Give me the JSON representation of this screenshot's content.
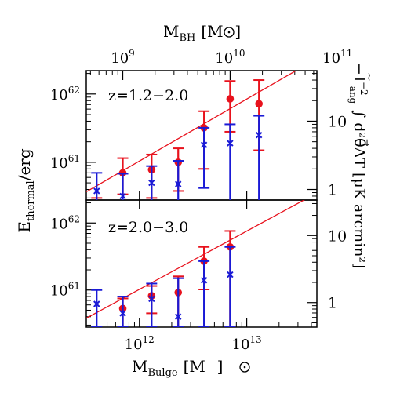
{
  "chart_data": {
    "type": "scatter",
    "x_scale": "log",
    "y_scale": "log",
    "shared_x_axis": {
      "bottom_label_main": "M",
      "bottom_label_sub": "Bulge",
      "bottom_label_unit": "[M",
      "bottom_label_unit_close": "]",
      "bottom_ticks": [
        {
          "value": 1000000000000.0,
          "base": "10",
          "exp": "12"
        },
        {
          "value": 10000000000000.0,
          "base": "10",
          "exp": "13"
        }
      ],
      "xlim": [
        320000000000.0,
        45000000000000.0
      ],
      "top_label_main": "M",
      "top_label_sub": "BH",
      "top_label_unit": "[M",
      "top_label_unit_close": "]",
      "top_ticks": [
        {
          "value_bulge": 700000000000.0,
          "base": "10",
          "exp": "9"
        },
        {
          "value_bulge": 7000000000000.0,
          "base": "10",
          "exp": "10"
        },
        {
          "value_bulge": 70000000000000.0,
          "base": "10",
          "exp": "11"
        }
      ]
    },
    "left_axis": {
      "label_main": "E",
      "label_sub": "thermal",
      "label_rest": "/erg"
    },
    "right_axis": {
      "label_prefix": "−",
      "label_tilde_l": "l",
      "label_exp": "−2",
      "label_sub": "ang",
      "label_integral": "∫ d²θ⃗ΔT [μK arcmin²]"
    },
    "panels": [
      {
        "name": "upper",
        "annotation": "z=1.2−2.0",
        "ylim": [
          2.8e+60,
          2.2e+62
        ],
        "left_ticks": [
          {
            "value": 1e+61,
            "base": "10",
            "exp": "61"
          },
          {
            "value": 1e+62,
            "base": "10",
            "exp": "62"
          }
        ],
        "right_ticks": [
          {
            "value": 4e+60,
            "label": "1"
          },
          {
            "value": 4e+61,
            "label": "10"
          }
        ],
        "model_line": [
          [
            320000000000.0,
            3.7e+60
          ],
          [
            45000000000000.0,
            3.3e+62
          ]
        ],
        "series": [
          {
            "marker": "circle",
            "color": "#e8121d",
            "points": [
              {
                "x": 400000000000.0,
                "y": 2e+60,
                "lo": 1e+60,
                "hi": 3e+60
              },
              {
                "x": 700000000000.0,
                "y": 7e+60,
                "lo": 3.4e+60,
                "hi": 1.15e+61
              },
              {
                "x": 1300000000000.0,
                "y": 7.8e+60,
                "lo": 3e+60,
                "hi": 1.3e+61
              },
              {
                "x": 2300000000000.0,
                "y": 1e+61,
                "lo": 3.8e+60,
                "hi": 1.6e+61
              },
              {
                "x": 4000000000000.0,
                "y": 3.2e+61,
                "lo": 8e+60,
                "hi": 5.6e+61
              },
              {
                "x": 7000000000000.0,
                "y": 8.5e+61,
                "lo": 2.8e+61,
                "hi": 1.55e+62
              },
              {
                "x": 13000000000000.0,
                "y": 7.2e+61,
                "lo": 1.5e+61,
                "hi": 1.6e+62
              }
            ]
          },
          {
            "marker": "cross",
            "color": "#1a1ad6",
            "points": [
              {
                "x": 400000000000.0,
                "y": 3.8e+60,
                "lo": 1.5e+60,
                "hi": 7e+60
              },
              {
                "x": 700000000000.0,
                "y": 3.2e+60,
                "lo": 1.5e+60,
                "hi": 6.8e+60
              },
              {
                "x": 1300000000000.0,
                "y": 5e+60,
                "lo": 1.5e+60,
                "hi": 8.8e+60
              },
              {
                "x": 2300000000000.0,
                "y": 4.8e+60,
                "lo": 1.5e+60,
                "hi": 1.05e+61
              },
              {
                "x": 4000000000000.0,
                "y": 1.8e+61,
                "lo": 4.2e+60,
                "hi": 3.2e+61
              },
              {
                "x": 7000000000000.0,
                "y": 1.9e+61,
                "lo": 1.5e+60,
                "hi": 3.6e+61
              },
              {
                "x": 13000000000000.0,
                "y": 2.5e+61,
                "lo": 1.5e+60,
                "hi": 4.8e+61
              }
            ]
          }
        ]
      },
      {
        "name": "lower",
        "annotation": "z=2.0−3.0",
        "ylim": [
          2.8e+60,
          2.2e+62
        ],
        "left_ticks": [
          {
            "value": 1e+61,
            "base": "10",
            "exp": "61"
          },
          {
            "value": 1e+62,
            "base": "10",
            "exp": "62"
          }
        ],
        "right_ticks": [
          {
            "value": 6.5e+60,
            "label": "1"
          },
          {
            "value": 6.5e+61,
            "label": "10"
          }
        ],
        "model_line": [
          [
            320000000000.0,
            3.8e+60
          ],
          [
            45000000000000.0,
            2.8e+62
          ]
        ],
        "series": [
          {
            "marker": "circle",
            "color": "#e8121d",
            "points": [
              {
                "x": 700000000000.0,
                "y": 5.3e+60,
                "lo": 2.5e+60,
                "hi": 7.5e+60
              },
              {
                "x": 1300000000000.0,
                "y": 8.2e+60,
                "lo": 4.5e+60,
                "hi": 1.15e+61
              },
              {
                "x": 2300000000000.0,
                "y": 9.2e+60,
                "lo": 2.8e+60,
                "hi": 1.6e+61
              },
              {
                "x": 4000000000000.0,
                "y": 2.7e+61,
                "lo": 1.02e+61,
                "hi": 4.4e+61
              },
              {
                "x": 7000000000000.0,
                "y": 4.4e+61,
                "lo": 2.8e+60,
                "hi": 7.6e+61
              }
            ]
          },
          {
            "marker": "cross",
            "color": "#1a1ad6",
            "points": [
              {
                "x": 400000000000.0,
                "y": 6.2e+60,
                "lo": 2.8e+60,
                "hi": 1e+61
              },
              {
                "x": 700000000000.0,
                "y": 4.5e+60,
                "lo": 2.8e+60,
                "hi": 8e+60
              },
              {
                "x": 1300000000000.0,
                "y": 7.4e+60,
                "lo": 2.8e+60,
                "hi": 1.25e+61
              },
              {
                "x": 2300000000000.0,
                "y": 4e+60,
                "lo": 2.8e+60,
                "hi": 1.5e+61
              },
              {
                "x": 4000000000000.0,
                "y": 1.4e+61,
                "lo": 2.8e+60,
                "hi": 2.7e+61
              },
              {
                "x": 7000000000000.0,
                "y": 1.7e+61,
                "lo": 2.8e+60,
                "hi": 4.4e+61
              }
            ]
          }
        ]
      }
    ]
  }
}
